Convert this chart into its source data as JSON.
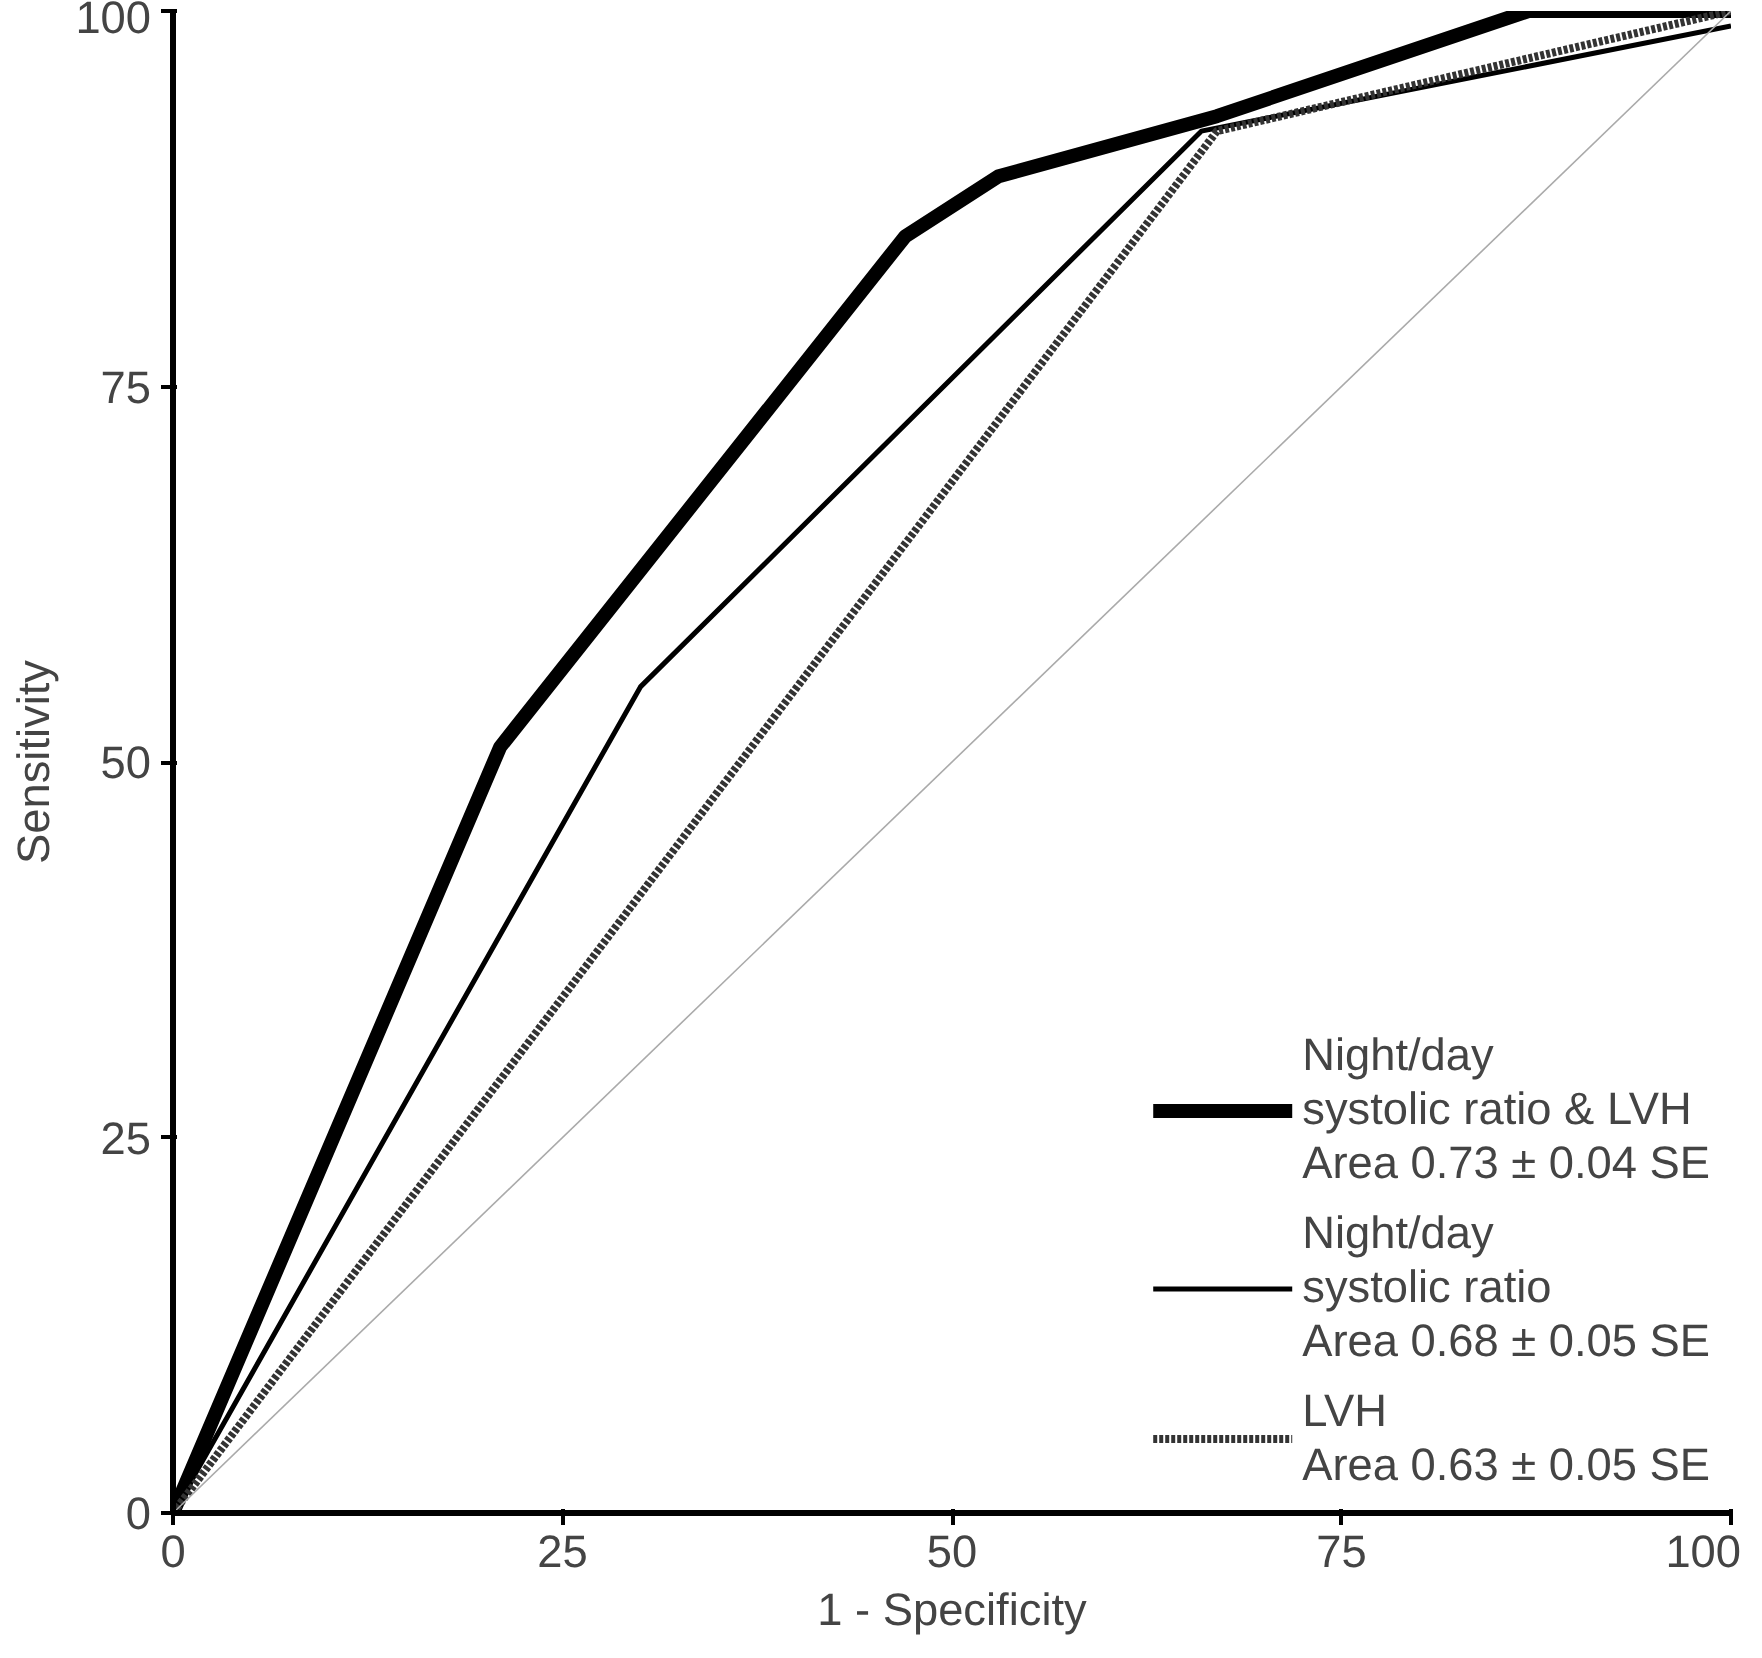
{
  "chart_data": {
    "type": "line",
    "xlabel": "1 - Specificity",
    "ylabel": "Sensitivity",
    "xlim": [
      0,
      100
    ],
    "ylim": [
      0,
      100
    ],
    "xticks": [
      0,
      25,
      50,
      75,
      100
    ],
    "yticks": [
      0,
      25,
      50,
      75,
      100
    ],
    "grid": false,
    "legend": "bottom right",
    "marker": "none",
    "series": [
      {
        "name": "Night/day\nsystolic ratio & LVH\nArea 0.73 ± 0.04 SE",
        "color": "#000000",
        "line_style": "solid",
        "x": [
          0,
          21,
          47,
          53,
          67,
          87,
          100
        ],
        "values": [
          0,
          51,
          85,
          89,
          93,
          100,
          100
        ]
      },
      {
        "name": "Night/day\nsystolic ratio\nArea 0.68 ± 0.05 SE",
        "color": "#000000",
        "line_style": "solid",
        "x": [
          0,
          30,
          66,
          100
        ],
        "values": [
          0,
          55,
          92,
          99
        ]
      },
      {
        "name": "LVH\nArea 0.63 ± 0.05 SE",
        "color": "#333333",
        "line_style": "dotted",
        "x": [
          0,
          67,
          100
        ],
        "values": [
          0,
          92,
          100
        ]
      },
      {
        "color": "#aaaaaa",
        "line_style": "solid",
        "x": [
          0,
          100
        ],
        "values": [
          0,
          100
        ]
      }
    ]
  }
}
